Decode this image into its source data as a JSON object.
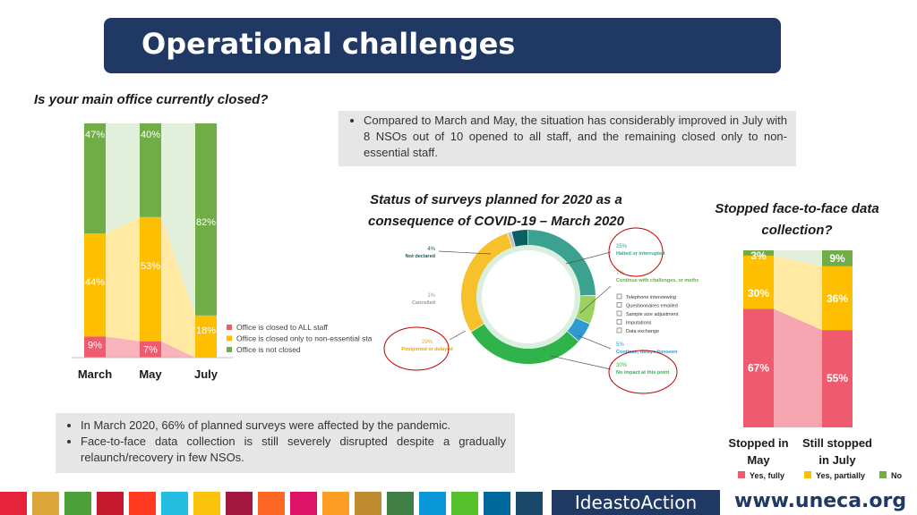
{
  "header": {
    "title": "Operational challenges"
  },
  "left_question": "Is your main office currently closed?",
  "top_note": "Compared to March and May, the situation has considerably improved in July with 8 NSOs out of 10 opened to all staff, and the remaining closed only to non-essential staff.",
  "bottom_notes": [
    "In March 2020, 66% of planned surveys were affected by the pandemic.",
    "Face-to-face data collection is still severely disrupted despite a gradually relaunch/recovery in few NSOs."
  ],
  "colors": {
    "red": "#f05a6e",
    "yellow": "#fdbf00",
    "green": "#70ad47"
  },
  "chart_data": [
    {
      "type": "bar",
      "title": "Is your main office currently closed?",
      "categories": [
        "March",
        "May",
        "July"
      ],
      "series": [
        {
          "name": "Office is closed to ALL staff",
          "values": [
            9,
            7,
            0
          ]
        },
        {
          "name": "Office is closed only to non-essential staff",
          "values": [
            44,
            53,
            18
          ]
        },
        {
          "name": "Office is not closed",
          "values": [
            47,
            40,
            82
          ]
        }
      ],
      "labels": {
        "red": [
          "9%",
          "7%",
          ""
        ],
        "yellow": [
          "44%",
          "53%",
          "18%"
        ],
        "green": [
          "47%",
          "40%",
          "82%"
        ]
      },
      "legend": [
        "Office is closed to ALL staff",
        "Office is closed only to non-essential staff",
        "Office is not closed"
      ],
      "ylim": [
        0,
        100
      ]
    },
    {
      "type": "pie",
      "title": "Status of surveys planned for 2020 as a consequence of COVID-19 – March 2020",
      "slices": [
        {
          "label": "Halted or interrupted",
          "pct": "25%",
          "value": 25
        },
        {
          "label": "Continue with challenges, or methodological adjustments:",
          "pct": "7%",
          "value": 7
        },
        {
          "label": "Continue, delays foreseen",
          "pct": "5%",
          "value": 5
        },
        {
          "label": "No impact at this point",
          "pct": "30%",
          "value": 30
        },
        {
          "label": "Postponed or delayed",
          "pct": "29%",
          "value": 29
        },
        {
          "label": "Cancelled",
          "pct": "1%",
          "value": 1
        },
        {
          "label": "Not declared",
          "pct": "4%",
          "value": 4
        }
      ],
      "sub_items": [
        "Telephone interviewing",
        "Questionnaires emailed",
        "Sample size adjustment",
        "Imputations",
        "Data exchange"
      ]
    },
    {
      "type": "bar",
      "title": "Stopped face-to-face data collection?",
      "categories": [
        "Stopped in May",
        "Still stopped in July"
      ],
      "category_lines": [
        [
          "Stopped in",
          "May"
        ],
        [
          "Still stopped",
          "in July"
        ]
      ],
      "series": [
        {
          "name": "Yes, fully",
          "values": [
            67,
            55
          ]
        },
        {
          "name": "Yes, partially",
          "values": [
            30,
            36
          ]
        },
        {
          "name": "No",
          "values": [
            3,
            9
          ]
        }
      ],
      "labels": {
        "red": [
          "67%",
          "55%"
        ],
        "yellow": [
          "30%",
          "36%"
        ],
        "green": [
          "3%",
          "9%"
        ]
      },
      "legend": [
        "Yes, fully",
        "Yes, partially",
        "No"
      ],
      "ylim": [
        0,
        100
      ]
    }
  ],
  "footer": {
    "ideas_label": "IdeastoAction",
    "website": "www.uneca.org"
  }
}
